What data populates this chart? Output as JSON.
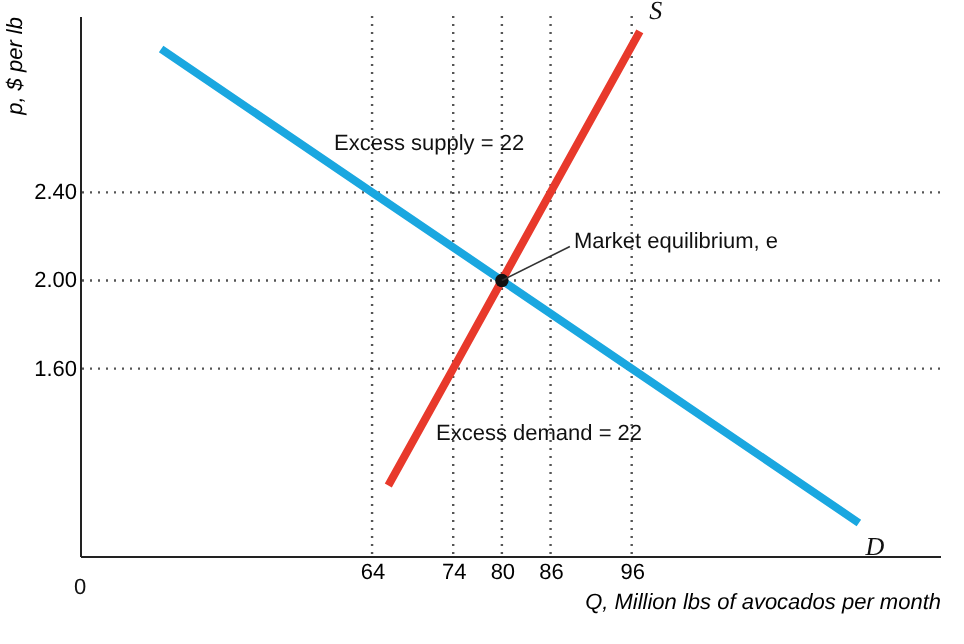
{
  "chart_data": {
    "type": "line",
    "xlabel": "Q, Million lbs of avocados per month",
    "ylabel": "p, $ per lb",
    "xlim": [
      28,
      134
    ],
    "xticks": [
      64,
      74,
      80,
      86,
      96
    ],
    "ylim": [
      0.75,
      3.2
    ],
    "yticks": [
      {
        "value": 1.6,
        "label": "1.60"
      },
      {
        "value": 2.0,
        "label": "2.00"
      },
      {
        "value": 2.4,
        "label": "2.40"
      }
    ],
    "series": [
      {
        "name": "D",
        "color": "#1aa7e0",
        "x": [
          38,
          64,
          80,
          96,
          124
        ],
        "values": [
          3.05,
          2.4,
          2.0,
          1.6,
          0.9
        ]
      },
      {
        "name": "S",
        "color": "#e8392b",
        "x": [
          66,
          74,
          80,
          86,
          97
        ],
        "values": [
          1.07,
          1.6,
          2.0,
          2.4,
          3.13
        ]
      },
      {
        "type": "scatter",
        "color": "#111111",
        "x": [
          80
        ],
        "values": [
          2.0
        ]
      }
    ],
    "ref_lines": [
      {
        "axis": "y",
        "value": 2.4,
        "color": "#555555",
        "line_style": "dotted"
      },
      {
        "axis": "y",
        "value": 2.0,
        "color": "#555555",
        "line_style": "dotted"
      },
      {
        "axis": "y",
        "value": 1.6,
        "color": "#555555",
        "line_style": "dotted"
      },
      {
        "axis": "x",
        "value": 64,
        "color": "#555555",
        "line_style": "dotted"
      },
      {
        "axis": "x",
        "value": 74,
        "color": "#555555",
        "line_style": "dotted"
      },
      {
        "axis": "x",
        "value": 80,
        "color": "#555555",
        "line_style": "dotted"
      },
      {
        "axis": "x",
        "value": 86,
        "color": "#555555",
        "line_style": "dotted"
      },
      {
        "axis": "x",
        "value": 96,
        "color": "#555555",
        "line_style": "dotted"
      }
    ],
    "annotations": [
      "Excess supply = 22",
      {
        "text": "Market equilibrium, e",
        "x": 80,
        "y": 2.0
      },
      "Excess demand = 22",
      "0"
    ],
    "line_style": "solid"
  }
}
